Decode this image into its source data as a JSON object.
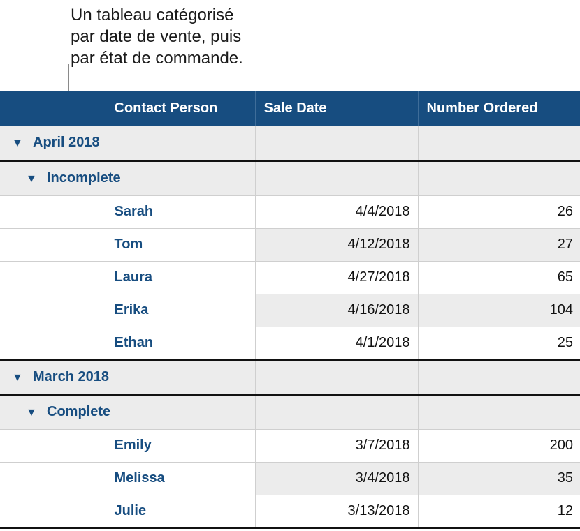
{
  "caption": {
    "lines": [
      "Un tableau catégorisé",
      "par date de vente, puis",
      "par état de commande."
    ]
  },
  "table": {
    "headers": [
      "",
      "Contact Person",
      "Sale Date",
      "Number Ordered"
    ],
    "groups": [
      {
        "title": "April 2018",
        "subgroups": [
          {
            "title": "Incomplete",
            "rows": [
              {
                "name": "Sarah",
                "date": "4/4/2018",
                "number": "26"
              },
              {
                "name": "Tom",
                "date": "4/12/2018",
                "number": "27"
              },
              {
                "name": "Laura",
                "date": "4/27/2018",
                "number": "65"
              },
              {
                "name": "Erika",
                "date": "4/16/2018",
                "number": "104"
              },
              {
                "name": "Ethan",
                "date": "4/1/2018",
                "number": "25"
              }
            ]
          }
        ]
      },
      {
        "title": "March 2018",
        "subgroups": [
          {
            "title": "Complete",
            "rows": [
              {
                "name": "Emily",
                "date": "3/7/2018",
                "number": "200"
              },
              {
                "name": "Melissa",
                "date": "3/4/2018",
                "number": "35"
              },
              {
                "name": "Julie",
                "date": "3/13/2018",
                "number": "12"
              }
            ]
          }
        ]
      }
    ]
  },
  "icons": {
    "disclosure": "disclosure-triangle-down-icon",
    "triangle_glyph": "▼"
  },
  "colors": {
    "header_bg": "#174d80",
    "accent_text": "#174d80",
    "group_bg": "#ececec"
  }
}
